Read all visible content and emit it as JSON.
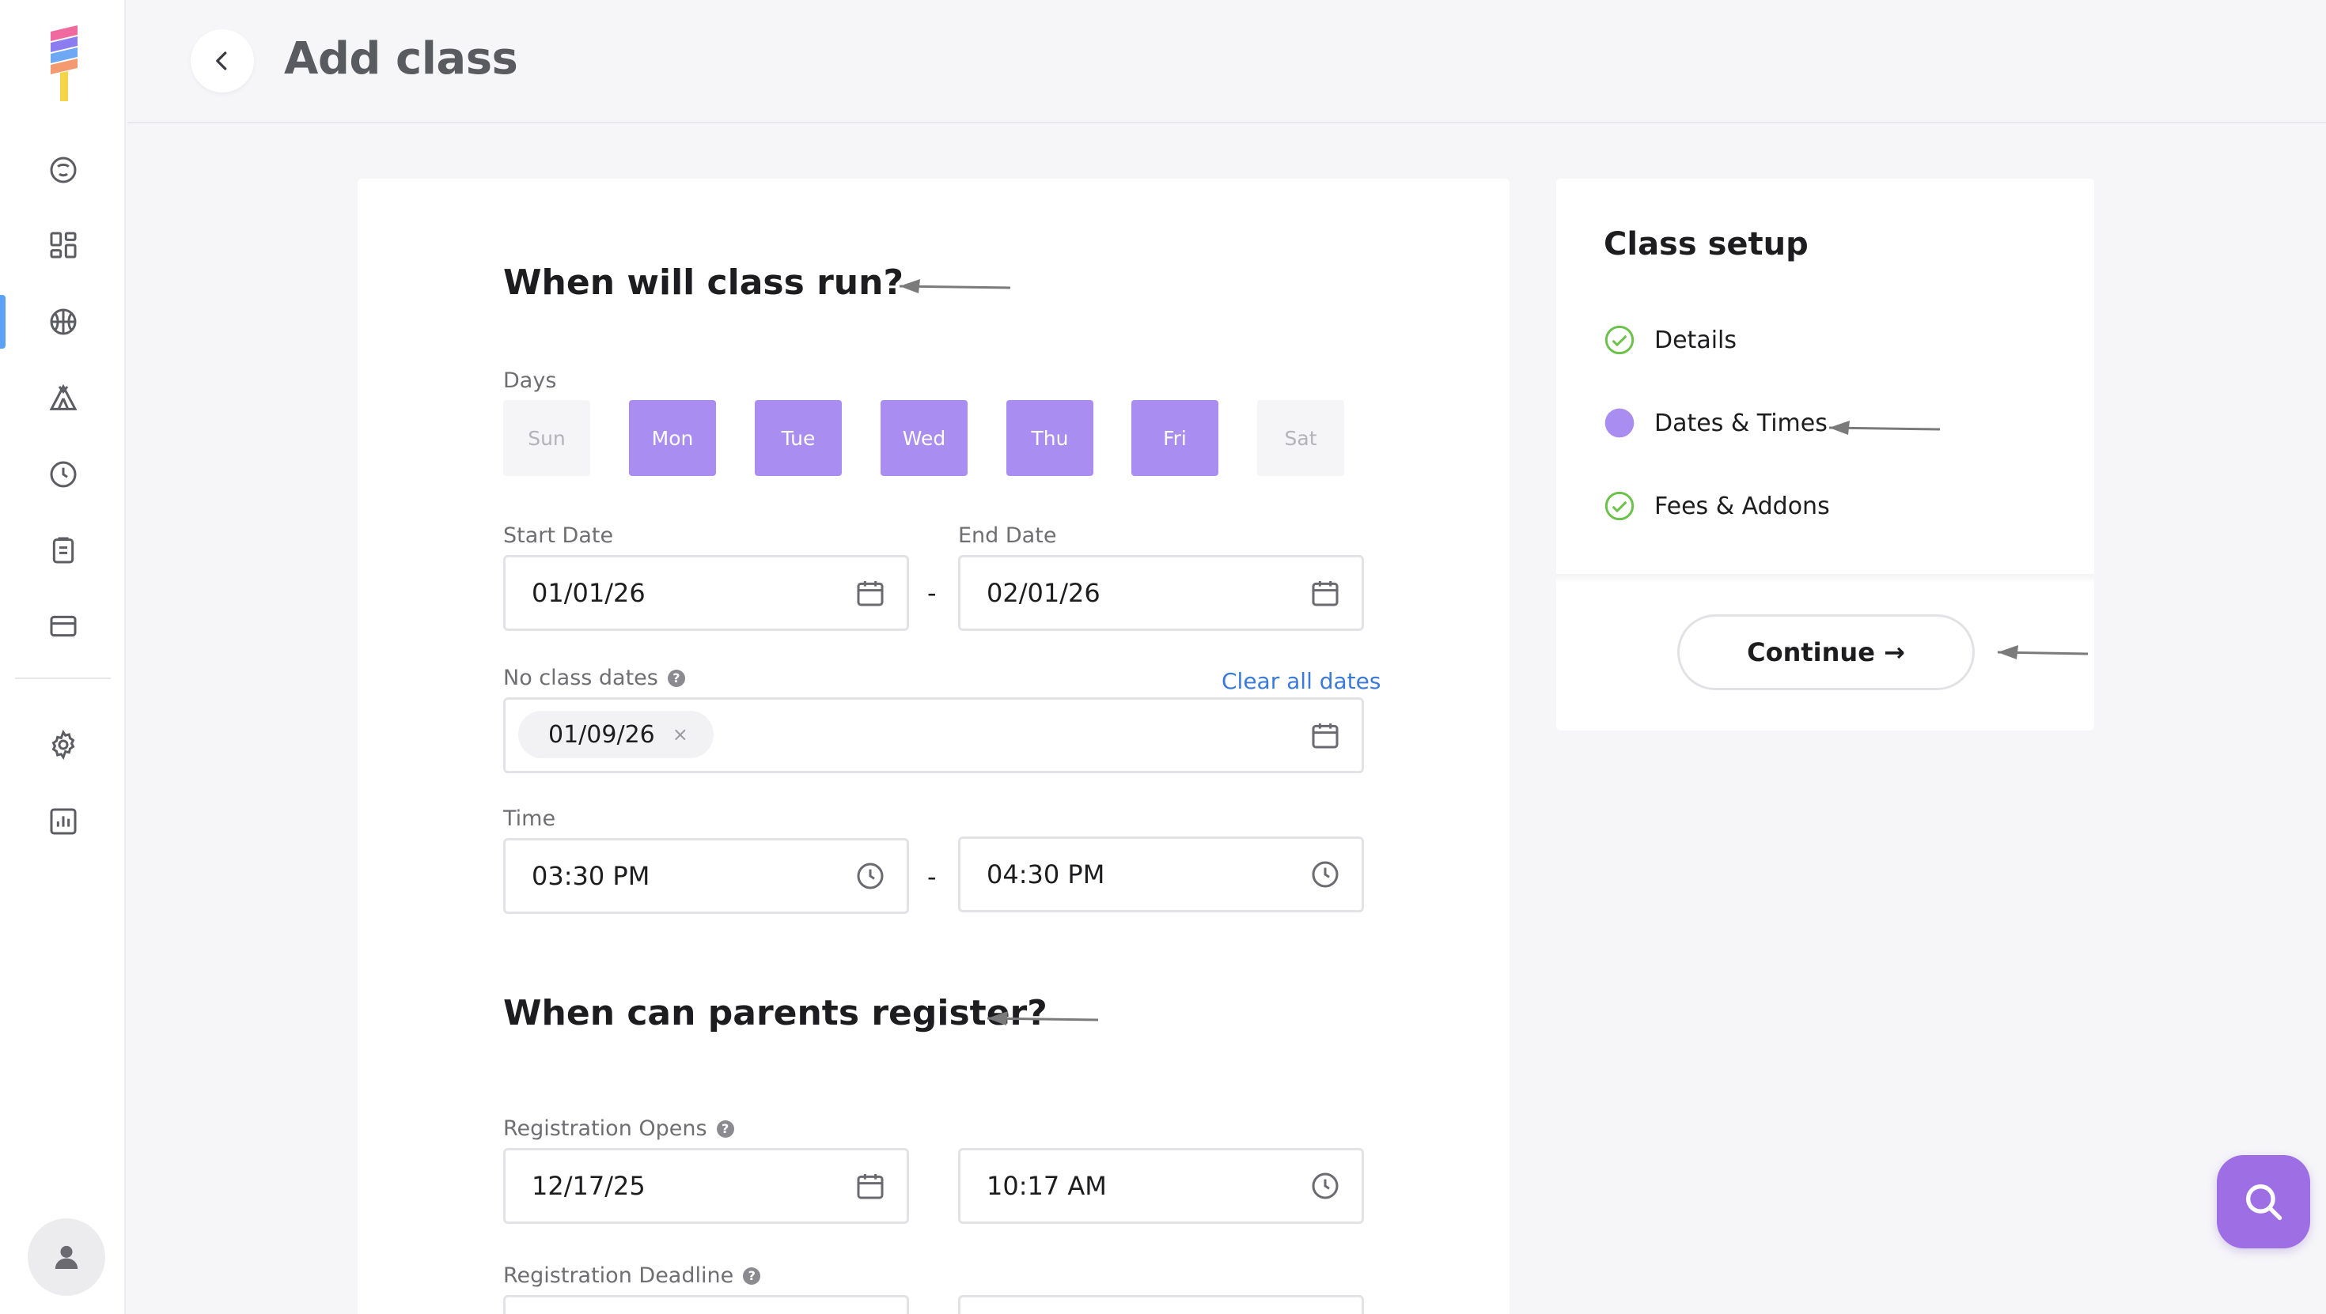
{
  "header": {
    "title": "Add class"
  },
  "class_run": {
    "title": "When will class run?",
    "days_label": "Days",
    "days": [
      {
        "label": "Sun",
        "selected": false
      },
      {
        "label": "Mon",
        "selected": true
      },
      {
        "label": "Tue",
        "selected": true
      },
      {
        "label": "Wed",
        "selected": true
      },
      {
        "label": "Thu",
        "selected": true
      },
      {
        "label": "Fri",
        "selected": true
      },
      {
        "label": "Sat",
        "selected": false
      }
    ],
    "start_date_label": "Start Date",
    "start_date": "01/01/26",
    "end_date_label": "End Date",
    "end_date": "02/01/26",
    "no_class_label": "No class dates",
    "clear_all_label": "Clear all dates",
    "no_class_dates": [
      "01/09/26"
    ],
    "chip_remove": "×",
    "time_label": "Time",
    "start_time": "03:30 PM",
    "end_time": "04:30 PM",
    "range_separator": "-"
  },
  "registration": {
    "title": "When can parents register?",
    "opens_label": "Registration Opens",
    "opens_date": "12/17/25",
    "opens_time": "10:17 AM",
    "deadline_label": "Registration Deadline",
    "help": "?"
  },
  "setup": {
    "title": "Class setup",
    "steps": [
      {
        "label": "Details",
        "state": "complete"
      },
      {
        "label": "Dates & Times",
        "state": "current"
      },
      {
        "label": "Fees & Addons",
        "state": "complete"
      }
    ],
    "continue_label": "Continue →"
  },
  "colors": {
    "accent_purple": "#a98df0",
    "step_complete_green": "#6cc24a",
    "link_blue": "#3b7ad9",
    "fab_purple": "#9e6ee4",
    "sidebar_active": "#5aa2f6"
  },
  "icons": {
    "sidebar": [
      "kid-face-icon",
      "dashboard-icon",
      "ball-icon",
      "tent-icon",
      "clock-icon",
      "clipboard-icon",
      "credit-card-icon",
      "gear-icon",
      "chart-icon"
    ]
  }
}
